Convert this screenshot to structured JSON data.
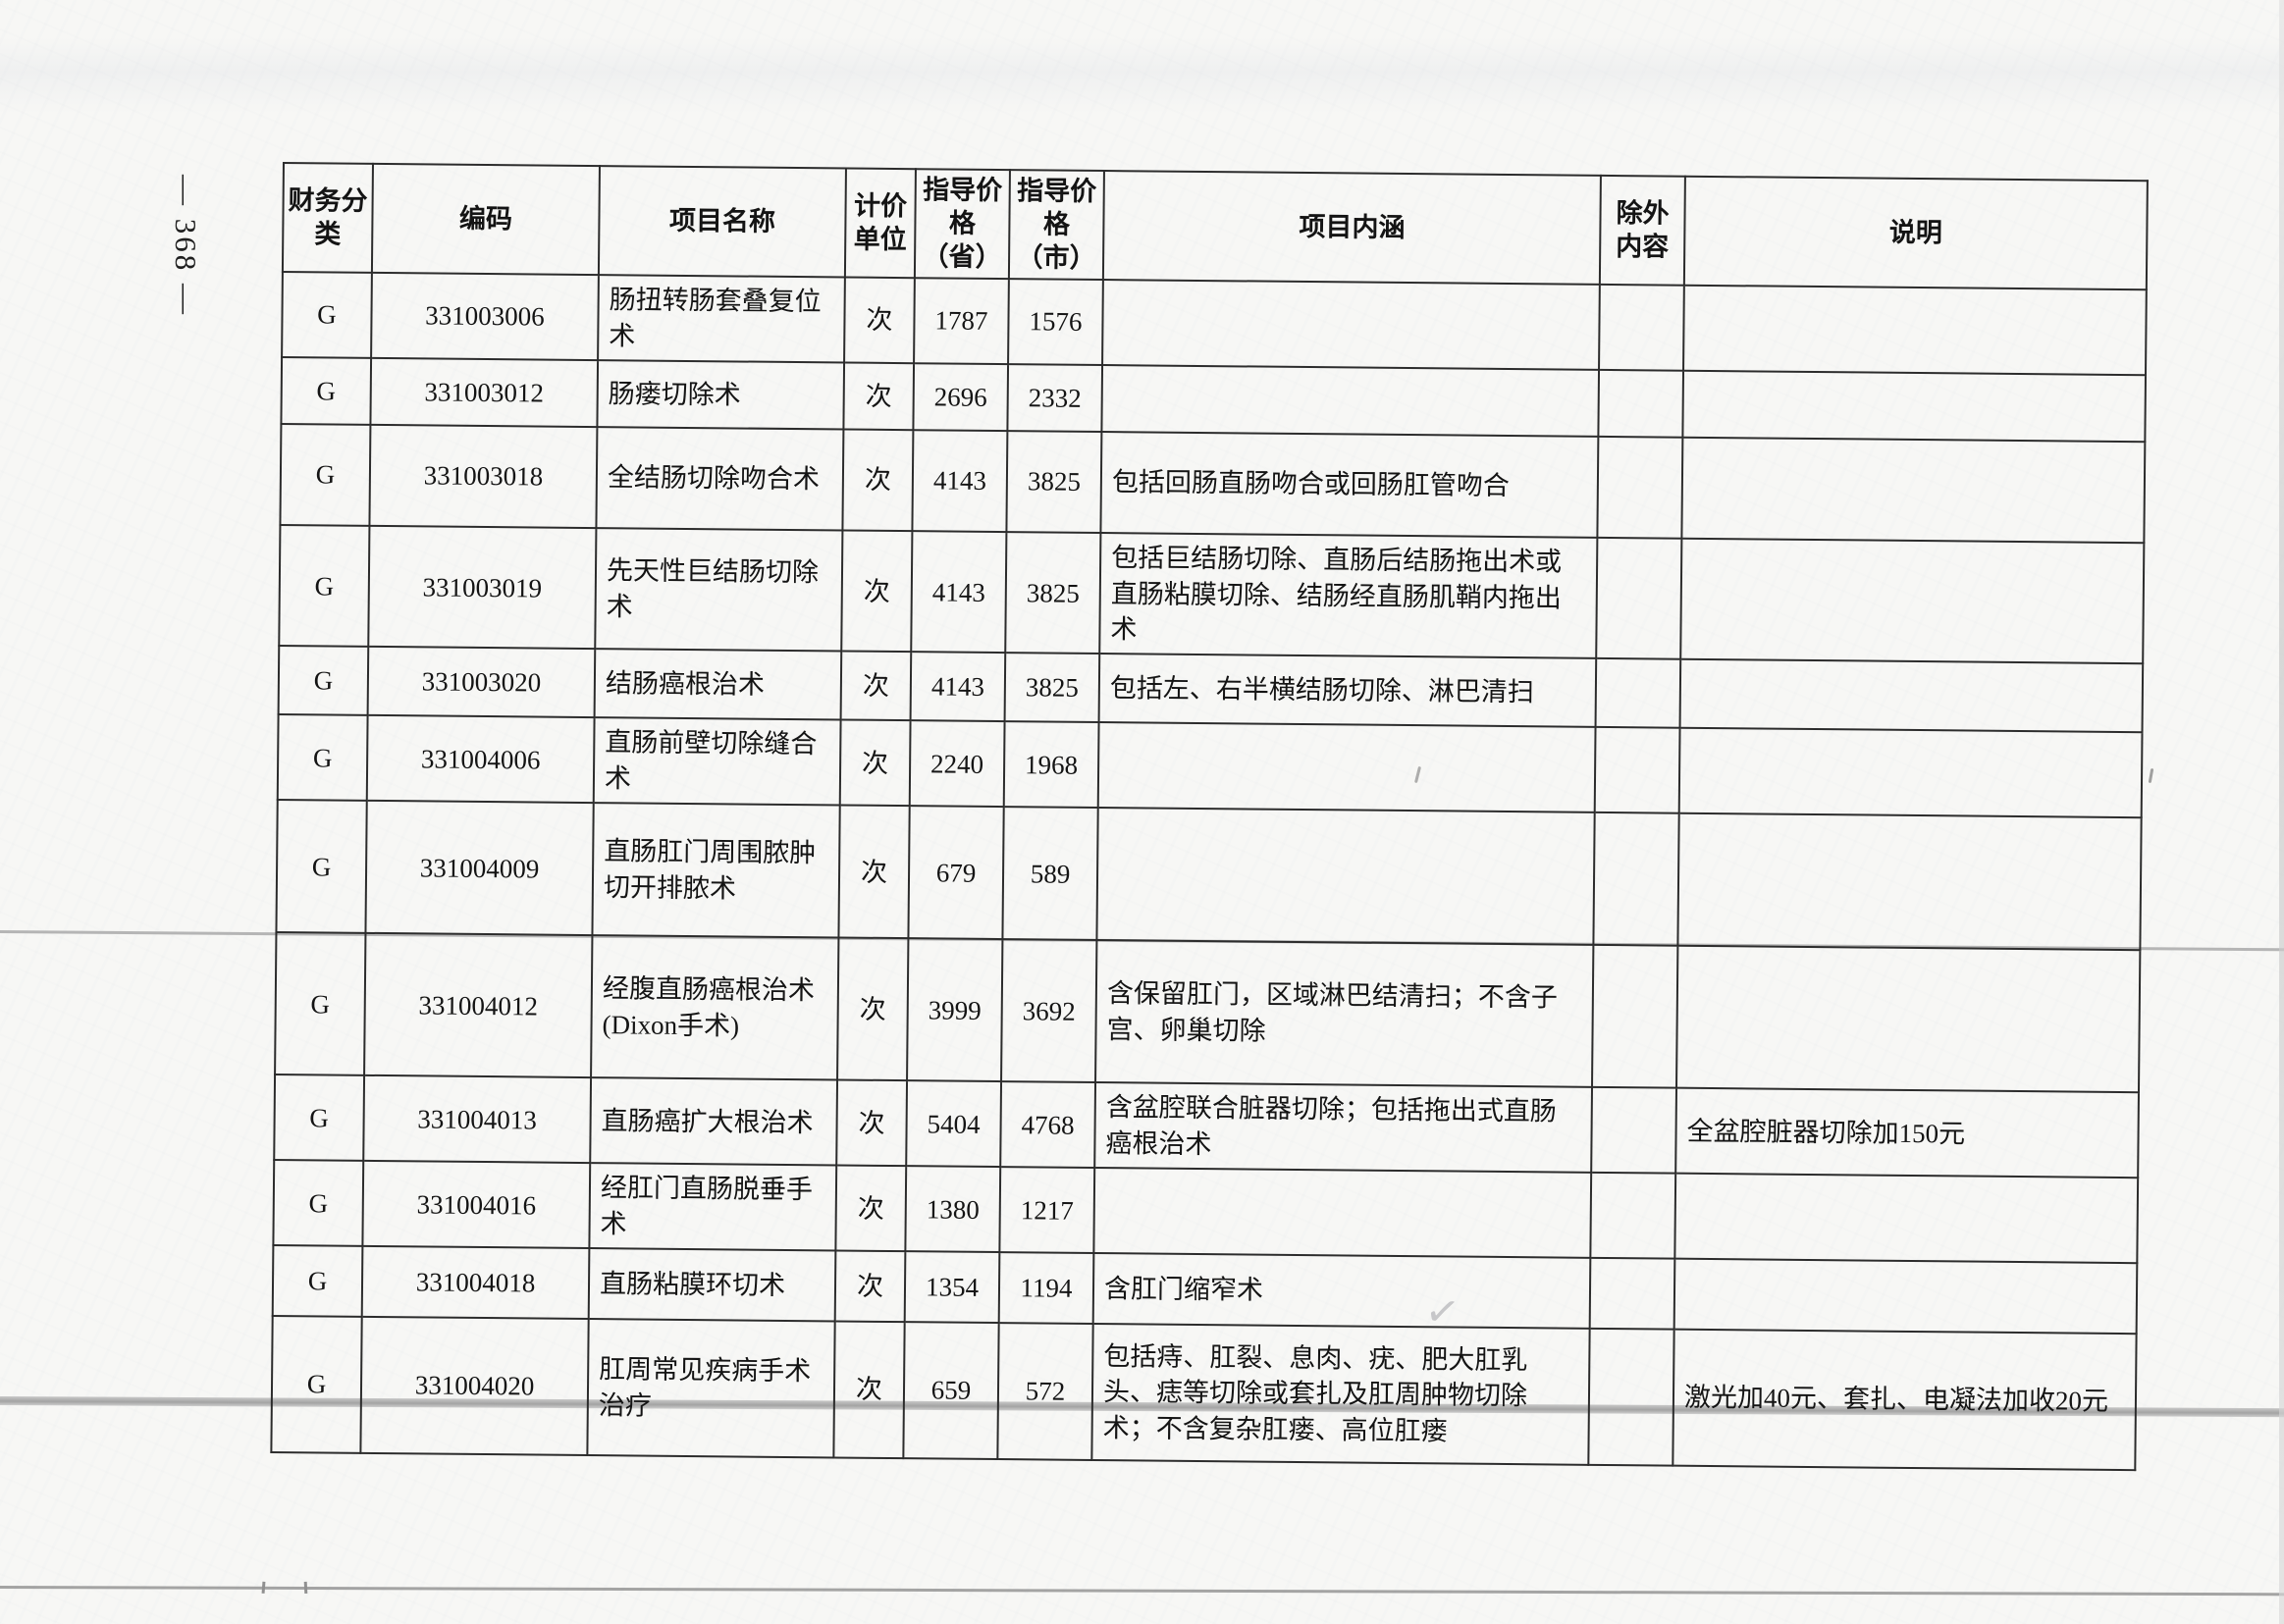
{
  "page": {
    "side_label": "— 368 —"
  },
  "table": {
    "columns": [
      {
        "key": "fin",
        "label": "财务分类"
      },
      {
        "key": "code",
        "label": "编码"
      },
      {
        "key": "name",
        "label": "项目名称"
      },
      {
        "key": "unit",
        "label": "计价单位"
      },
      {
        "key": "prov",
        "label": "指导价格（省）"
      },
      {
        "key": "city",
        "label": "指导价格（市）"
      },
      {
        "key": "content",
        "label": "项目内涵"
      },
      {
        "key": "excl",
        "label": "除外内容"
      },
      {
        "key": "notes",
        "label": "说明"
      }
    ],
    "rows": [
      {
        "fin": "G",
        "code": "331003006",
        "name": "肠扭转肠套叠复位术",
        "unit": "次",
        "prov": "1787",
        "city": "1576",
        "content": "",
        "excl": "",
        "notes": ""
      },
      {
        "fin": "G",
        "code": "331003012",
        "name": "肠瘘切除术",
        "unit": "次",
        "prov": "2696",
        "city": "2332",
        "content": "",
        "excl": "",
        "notes": ""
      },
      {
        "fin": "G",
        "code": "331003018",
        "name": "全结肠切除吻合术",
        "unit": "次",
        "prov": "4143",
        "city": "3825",
        "content": "包括回肠直肠吻合或回肠肛管吻合",
        "excl": "",
        "notes": ""
      },
      {
        "fin": "G",
        "code": "331003019",
        "name": "先天性巨结肠切除术",
        "unit": "次",
        "prov": "4143",
        "city": "3825",
        "content": "包括巨结肠切除、直肠后结肠拖出术或直肠粘膜切除、结肠经直肠肌鞘内拖出术",
        "excl": "",
        "notes": ""
      },
      {
        "fin": "G",
        "code": "331003020",
        "name": "结肠癌根治术",
        "unit": "次",
        "prov": "4143",
        "city": "3825",
        "content": "包括左、右半横结肠切除、淋巴清扫",
        "excl": "",
        "notes": ""
      },
      {
        "fin": "G",
        "code": "331004006",
        "name": "直肠前壁切除缝合术",
        "unit": "次",
        "prov": "2240",
        "city": "1968",
        "content": "",
        "excl": "",
        "notes": ""
      },
      {
        "fin": "G",
        "code": "331004009",
        "name": "直肠肛门周围脓肿切开排脓术",
        "unit": "次",
        "prov": "679",
        "city": "589",
        "content": "",
        "excl": "",
        "notes": ""
      },
      {
        "fin": "G",
        "code": "331004012",
        "name": "经腹直肠癌根治术(Dixon手术)",
        "unit": "次",
        "prov": "3999",
        "city": "3692",
        "content": "含保留肛门，区域淋巴结清扫；不含子宫、卵巢切除",
        "excl": "",
        "notes": ""
      },
      {
        "fin": "G",
        "code": "331004013",
        "name": "直肠癌扩大根治术",
        "unit": "次",
        "prov": "5404",
        "city": "4768",
        "content": "含盆腔联合脏器切除；包括拖出式直肠癌根治术",
        "excl": "",
        "notes": "全盆腔脏器切除加150元"
      },
      {
        "fin": "G",
        "code": "331004016",
        "name": "经肛门直肠脱垂手术",
        "unit": "次",
        "prov": "1380",
        "city": "1217",
        "content": "",
        "excl": "",
        "notes": ""
      },
      {
        "fin": "G",
        "code": "331004018",
        "name": "直肠粘膜环切术",
        "unit": "次",
        "prov": "1354",
        "city": "1194",
        "content": "含肛门缩窄术",
        "excl": "",
        "notes": ""
      },
      {
        "fin": "G",
        "code": "331004020",
        "name": "肛周常见疾病手术治疗",
        "unit": "次",
        "prov": "659",
        "city": "572",
        "content": "包括痔、肛裂、息肉、疣、肥大肛乳头、痣等切除或套扎及肛周肿物切除术；不含复杂肛瘘、高位肛瘘",
        "excl": "",
        "notes": "激光加40元、套扎、电凝法加收20元"
      }
    ]
  },
  "artifacts": {
    "check_mark": "✓"
  }
}
